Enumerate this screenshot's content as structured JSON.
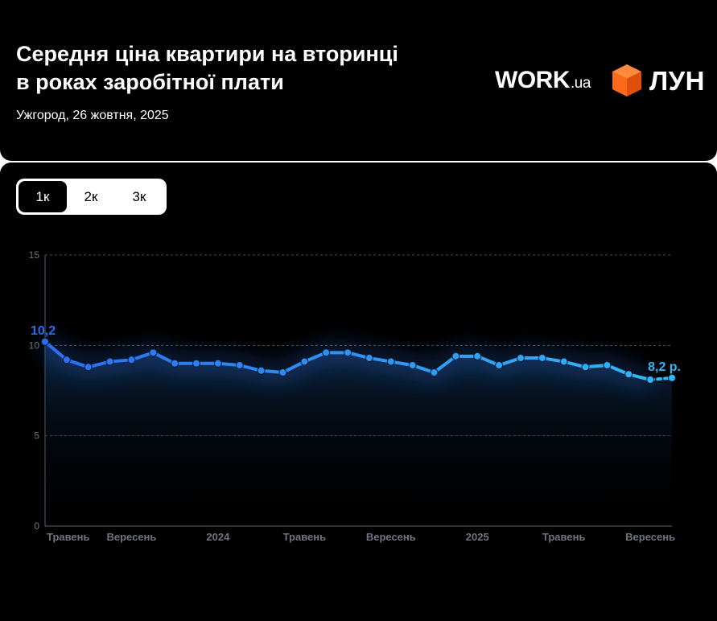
{
  "header": {
    "title_line1": "Середня ціна квартири на вторинці",
    "title_line2": "в роках заробітної плати",
    "subtitle": "Ужгород, 26 жовтня, 2025"
  },
  "logos": {
    "work_main": "WORK",
    "work_suffix": ".ua",
    "lun": "ЛУН",
    "cube_colors": [
      "#ff6a1a",
      "#ff8a3d",
      "#e04e0a"
    ]
  },
  "tabs": [
    {
      "label": "1к",
      "active": true
    },
    {
      "label": "2к",
      "active": false
    },
    {
      "label": "3к",
      "active": false
    }
  ],
  "chart_data": {
    "type": "line",
    "ylim": [
      0,
      15
    ],
    "yticks": [
      0,
      5,
      10,
      15
    ],
    "grid": true,
    "x_tick_labels": [
      "Травень",
      "Вересень",
      "2024",
      "Травень",
      "Вересень",
      "2025",
      "Травень",
      "Вересень"
    ],
    "x_tick_index": [
      0,
      4,
      8,
      12,
      16,
      20,
      24,
      28
    ],
    "series": [
      {
        "values": [
          10.2,
          9.2,
          8.8,
          9.1,
          9.2,
          9.6,
          9.0,
          9.0,
          9.0,
          8.9,
          8.6,
          8.5,
          9.1,
          9.6,
          9.6,
          9.3,
          9.1,
          8.9,
          8.5,
          9.4,
          9.4,
          8.9,
          9.3,
          9.3,
          9.1,
          8.8,
          8.9,
          8.4,
          8.1,
          8.2
        ],
        "color_start": "#2c6df0",
        "color_end": "#33b7f5"
      }
    ],
    "first_label": "10,2",
    "last_label": "8,2 р."
  }
}
